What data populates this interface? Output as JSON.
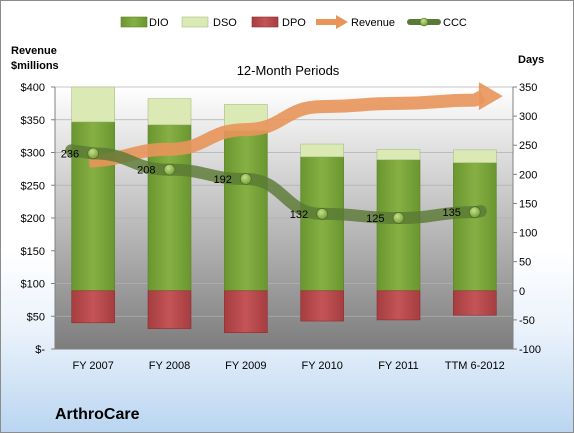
{
  "company": "ArthroCare",
  "chart_data": {
    "type": "bar",
    "title": "12-Month Periods",
    "left_axis_label": [
      "Revenue",
      "$millions"
    ],
    "right_axis_label": "Days",
    "categories": [
      "FY 2007",
      "FY 2008",
      "FY 2009",
      "FY 2010",
      "FY 2011",
      "TTM 6-2012"
    ],
    "left_ticks": [
      "$400",
      "$350",
      "$300",
      "$250",
      "$200",
      "$150",
      "$100",
      "$50",
      "$-"
    ],
    "right_ticks": [
      "350",
      "300",
      "250",
      "200",
      "150",
      "100",
      "50",
      "0",
      "-50",
      "-100"
    ],
    "ylim_left": [
      0,
      400
    ],
    "ylim_right": [
      -100,
      350
    ],
    "legend_position": "top",
    "series": [
      {
        "name": "DIO",
        "color": "#77a337",
        "values": [
          290,
          285,
          275,
          230,
          225,
          220
        ]
      },
      {
        "name": "DSO",
        "color": "#dbeab5",
        "values": [
          60,
          45,
          45,
          22,
          18,
          22
        ]
      },
      {
        "name": "DPO",
        "color": "#b94a4c",
        "values": [
          -55,
          -65,
          -72,
          -52,
          -50,
          -42
        ]
      },
      {
        "name": "Revenue",
        "color": "#e8955a",
        "values": [
          290,
          305,
          335,
          370,
          375,
          380
        ]
      },
      {
        "name": "CCC",
        "color": "#5a7a35",
        "values": [
          236,
          208,
          192,
          132,
          125,
          135
        ]
      }
    ],
    "data_labels": [
      "236",
      "208",
      "192",
      "132",
      "125",
      "135"
    ]
  }
}
